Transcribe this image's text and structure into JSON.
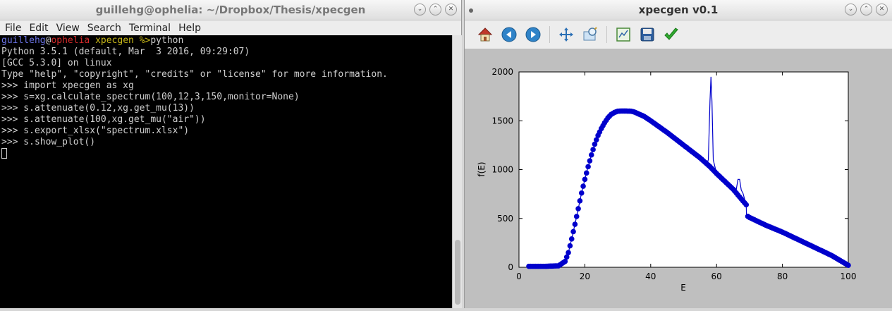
{
  "terminal_window": {
    "title": "guillehg@ophelia: ~/Dropbox/Thesis/xpecgen",
    "menu": [
      "File",
      "Edit",
      "View",
      "Search",
      "Terminal",
      "Help"
    ],
    "prompt": {
      "user": "guillehg",
      "at": "@",
      "host": "ophelia",
      "dir": " xpecgen",
      "symbol": " %>",
      "command": "python"
    },
    "lines": [
      "Python 3.5.1 (default, Mar  3 2016, 09:29:07)",
      "[GCC 5.3.0] on linux",
      "Type \"help\", \"copyright\", \"credits\" or \"license\" for more information.",
      ">>> import xpecgen as xg",
      ">>> s=xg.calculate_spectrum(100,12,3,150,monitor=None)",
      ">>> s.attenuate(0.12,xg.get_mu(13))",
      ">>> s.attenuate(100,xg.get_mu(\"air\"))",
      ">>> s.export_xlsx(\"spectrum.xlsx\")",
      ">>> s.show_plot()"
    ]
  },
  "plot_window": {
    "title": "xpecgen v0.1",
    "toolbar": [
      "home-icon",
      "back-arrow-icon",
      "forward-arrow-icon",
      "pan-move-icon",
      "zoom-rect-icon",
      "subplot-config-icon",
      "save-icon",
      "check-icon"
    ]
  },
  "window_buttons": {
    "minimize": "⌄",
    "maximize": "⌃",
    "close": "✕"
  },
  "colors": {
    "series": "#0000cc",
    "terminal_bg": "#000000",
    "plot_bg": "#bfbfbf"
  },
  "chart_data": {
    "type": "scatter",
    "xlabel": "E",
    "ylabel": "f(E)",
    "xlim": [
      0,
      100
    ],
    "ylim": [
      0,
      2000
    ],
    "xticks": [
      0,
      20,
      40,
      60,
      80,
      100
    ],
    "yticks": [
      0,
      500,
      1000,
      1500,
      2000
    ],
    "grid": false,
    "series": [
      {
        "style": "line-with-markers",
        "x": [
          3,
          8,
          12,
          14,
          15,
          16,
          17,
          18,
          19,
          20,
          21,
          22,
          23,
          24,
          25,
          26,
          27,
          28,
          29,
          30,
          31,
          32,
          34,
          35,
          36,
          38,
          40,
          45,
          50,
          55,
          58,
          60,
          65,
          69,
          69.1,
          70,
          75,
          80,
          85,
          90,
          95,
          98,
          100
        ],
        "y": [
          10,
          10,
          15,
          60,
          150,
          290,
          440,
          600,
          760,
          900,
          1030,
          1150,
          1260,
          1350,
          1420,
          1480,
          1530,
          1565,
          1585,
          1598,
          1600,
          1600,
          1598,
          1590,
          1575,
          1545,
          1500,
          1380,
          1250,
          1120,
          1030,
          960,
          800,
          640,
          530,
          510,
          430,
          360,
          280,
          200,
          120,
          60,
          20
        ]
      },
      {
        "style": "line",
        "x": [
          55,
          57,
          57.5,
          58,
          58.3,
          58.6,
          59,
          60,
          62,
          64,
          66,
          66.5,
          67,
          67.5,
          68,
          68.5,
          69
        ],
        "y": [
          1120,
          1060,
          1100,
          1700,
          1950,
          1700,
          1100,
          960,
          900,
          850,
          800,
          900,
          900,
          790,
          760,
          700,
          640
        ]
      }
    ]
  }
}
